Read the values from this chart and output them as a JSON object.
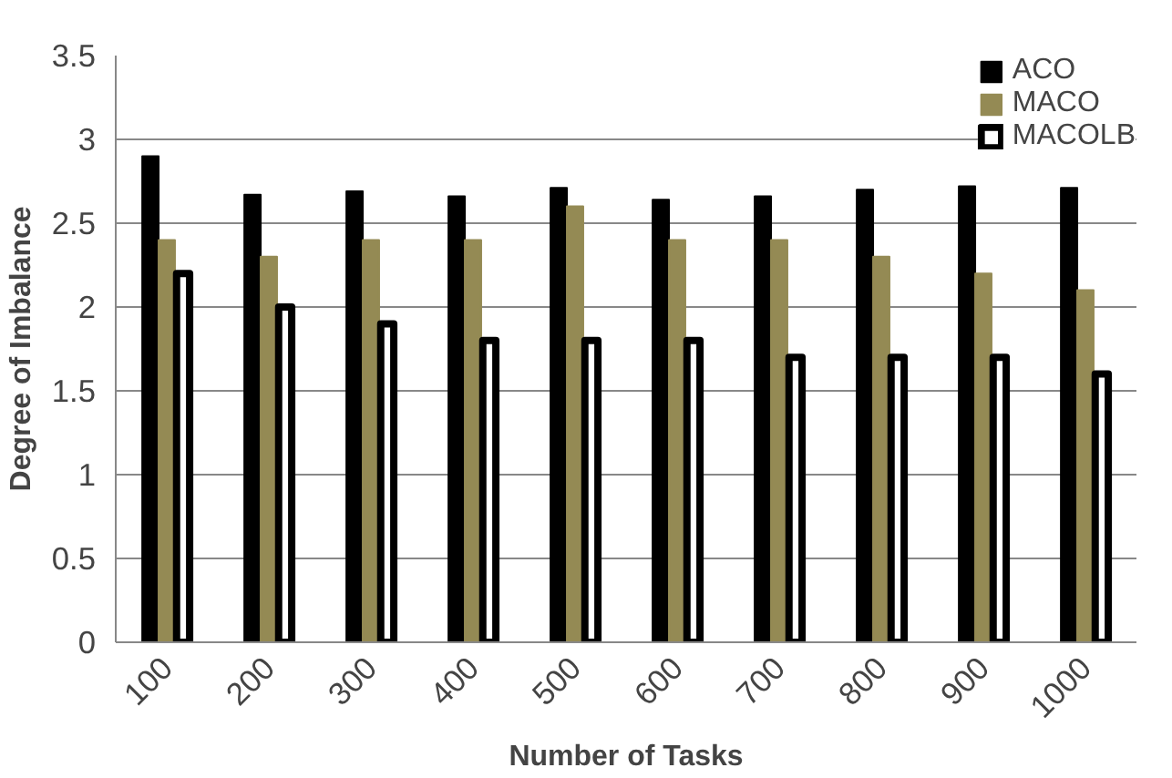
{
  "chart_data": {
    "type": "bar",
    "xlabel": "Number of Tasks",
    "ylabel": "Degree of Imbalance",
    "categories": [
      "100",
      "200",
      "300",
      "400",
      "500",
      "600",
      "700",
      "800",
      "900",
      "1000"
    ],
    "series": [
      {
        "name": "ACO",
        "color": "#000000",
        "values": [
          2.9,
          2.67,
          2.69,
          2.66,
          2.71,
          2.64,
          2.66,
          2.7,
          2.72,
          2.71
        ]
      },
      {
        "name": "MACO",
        "color": "#948a54",
        "values": [
          2.4,
          2.3,
          2.4,
          2.4,
          2.6,
          2.4,
          2.4,
          2.3,
          2.2,
          2.1
        ]
      },
      {
        "name": "MACOLB",
        "color": "#ffffff",
        "values": [
          2.2,
          2.0,
          1.9,
          1.8,
          1.8,
          1.8,
          1.7,
          1.7,
          1.7,
          1.6
        ]
      }
    ],
    "ylim": [
      0,
      3.5
    ],
    "yticks": [
      0,
      0.5,
      1,
      1.5,
      2,
      2.5,
      3,
      3.5
    ],
    "grid": "y",
    "legend": "top right"
  }
}
